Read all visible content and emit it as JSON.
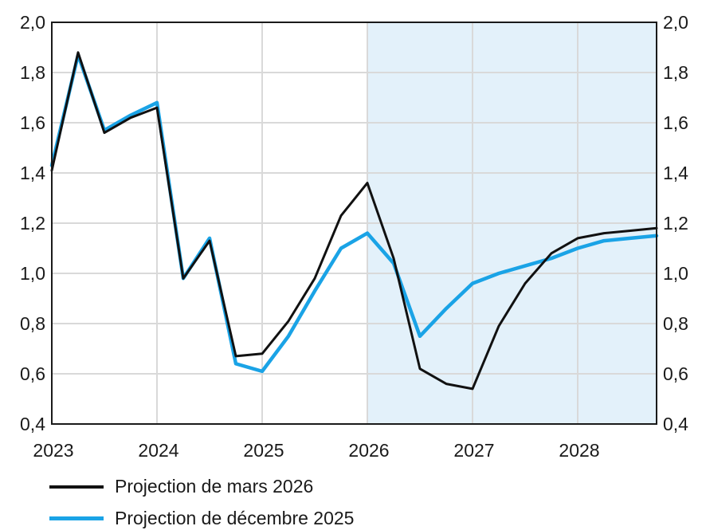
{
  "chart_data": {
    "type": "line",
    "title": "",
    "xlabel": "",
    "ylabel": "",
    "x_tick_labels": [
      "2023",
      "2024",
      "2025",
      "2026",
      "2027",
      "2028"
    ],
    "y_tick_labels": [
      "2,0",
      "1,8",
      "1,6",
      "1,4",
      "1,2",
      "1,0",
      "0,8",
      "0,6",
      "0,4"
    ],
    "y_ticks": [
      2.0,
      1.8,
      1.6,
      1.4,
      1.2,
      1.0,
      0.8,
      0.6,
      0.4
    ],
    "xlim": [
      2023.0,
      2028.75
    ],
    "ylim": [
      0.4,
      2.0
    ],
    "grid": true,
    "projection_shading": {
      "from": 2026.0,
      "to": 2028.75,
      "color": "#e3f1fa"
    },
    "legend_position": "bottom-left",
    "series": [
      {
        "name": "Projection de mars 2026",
        "color": "#111111",
        "x": [
          2023.0,
          2023.25,
          2023.5,
          2023.75,
          2024.0,
          2024.25,
          2024.5,
          2024.75,
          2025.0,
          2025.25,
          2025.5,
          2025.75,
          2026.0,
          2026.25,
          2026.5,
          2026.75,
          2027.0,
          2027.25,
          2027.5,
          2027.75,
          2028.0,
          2028.25,
          2028.5,
          2028.75
        ],
        "values": [
          1.41,
          1.88,
          1.56,
          1.62,
          1.66,
          0.98,
          1.13,
          0.67,
          0.68,
          0.81,
          0.98,
          1.23,
          1.36,
          1.06,
          0.62,
          0.56,
          0.54,
          0.79,
          0.96,
          1.08,
          1.14,
          1.16,
          1.17,
          1.18
        ]
      },
      {
        "name": "Projection de décembre 2025",
        "color": "#1aa3e6",
        "x": [
          2023.0,
          2023.25,
          2023.5,
          2023.75,
          2024.0,
          2024.25,
          2024.5,
          2024.75,
          2025.0,
          2025.25,
          2025.5,
          2025.75,
          2026.0,
          2026.25,
          2026.5,
          2026.75,
          2027.0,
          2027.25,
          2027.5,
          2027.75,
          2028.0,
          2028.25,
          2028.5,
          2028.75
        ],
        "values": [
          1.43,
          1.87,
          1.57,
          1.63,
          1.68,
          0.98,
          1.14,
          0.64,
          0.61,
          0.75,
          0.93,
          1.1,
          1.16,
          1.04,
          0.75,
          0.86,
          0.96,
          1.0,
          1.03,
          1.06,
          1.1,
          1.13,
          1.14,
          1.15
        ]
      }
    ]
  }
}
